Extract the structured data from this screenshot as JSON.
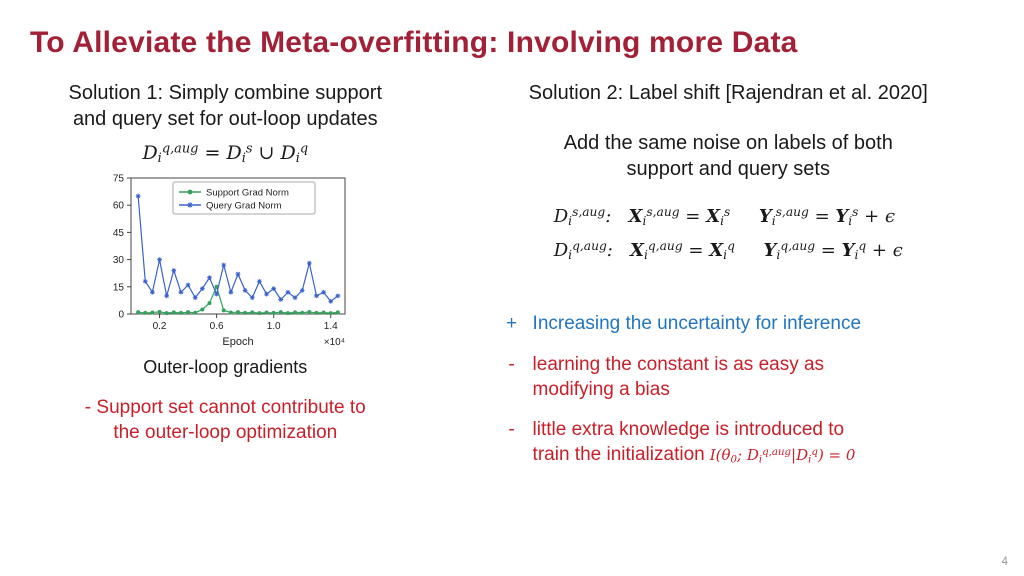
{
  "slide": {
    "title": "To Alleviate the Meta-overfitting: Involving more Data",
    "page_number": "4"
  },
  "colors": {
    "title": "#a22136",
    "negative": "#c8202a",
    "positive": "#2176bd"
  },
  "left": {
    "heading": "Solution 1: Simply combine support\nand query set for out-loop updates",
    "formula": "D_{i}^{q,aug} = D_{i}^{s} ∪ D_{i}^{q}",
    "chart_caption": "Outer-loop gradients",
    "con": "- Support set cannot contribute to\nthe outer-loop optimization"
  },
  "right": {
    "heading": "Solution 2: Label shift [Rajendran et al. 2020]",
    "subheading": "Add the same noise on labels of both\nsupport and query sets",
    "formula_support": "D_{i}^{s,aug}:   **X**_{i}^{s,aug} = **X**_{i}^{s}     **Y**_{i}^{s,aug} = **Y**_{i}^{s} + ϵ",
    "formula_query": "D_{i}^{q,aug}:   **X**_{i}^{q,aug} = **X**_{i}^{q}     **Y**_{i}^{q,aug} = **Y**_{i}^{q} + ϵ",
    "pro_marker": "+",
    "pro_text": "Increasing the uncertainty for inference",
    "con_marker": "-",
    "cons": [
      {
        "text": "learning the constant is as easy as\nmodifying a bias",
        "math": ""
      },
      {
        "text": "little extra knowledge is introduced to\ntrain the initialization",
        "math": "I(θ_{0}; D_{i}^{q,aug}|D_{i}^{q}) = 0"
      }
    ]
  },
  "chart_data": {
    "type": "line",
    "title": "",
    "xlabel": "Epoch",
    "ylabel": "",
    "x_multiplier_label": "×10⁴",
    "xlim": [
      0.0,
      1.5
    ],
    "ylim": [
      0,
      75
    ],
    "xticks": [
      0.2,
      0.6,
      1.0,
      1.4
    ],
    "yticks": [
      0,
      15,
      30,
      45,
      60,
      75
    ],
    "grid": false,
    "legend_position": "upper center",
    "x": [
      0.05,
      0.1,
      0.15,
      0.2,
      0.25,
      0.3,
      0.35,
      0.4,
      0.45,
      0.5,
      0.55,
      0.6,
      0.65,
      0.7,
      0.75,
      0.8,
      0.85,
      0.9,
      0.95,
      1.0,
      1.05,
      1.1,
      1.15,
      1.2,
      1.25,
      1.3,
      1.35,
      1.4,
      1.45
    ],
    "series": [
      {
        "name": "Support Grad Norm",
        "color": "#33a35c",
        "marker": "circle",
        "y": [
          1,
          0.6,
          0.8,
          1.2,
          0.5,
          0.9,
          0.6,
          1,
          0.7,
          2.5,
          6,
          15,
          2,
          0.8,
          1,
          0.6,
          0.9,
          0.5,
          0.8,
          0.6,
          1,
          0.5,
          0.9,
          0.7,
          1.1,
          0.6,
          0.8,
          0.5,
          0.9
        ]
      },
      {
        "name": "Query Grad Norm",
        "color": "#3a63c9",
        "marker": "star",
        "y": [
          65,
          18,
          12,
          30,
          10,
          24,
          12,
          16,
          9,
          14,
          20,
          11,
          27,
          12,
          22,
          13,
          9,
          18,
          11,
          14,
          8,
          12,
          9,
          13,
          28,
          10,
          12,
          7,
          10
        ]
      }
    ]
  }
}
